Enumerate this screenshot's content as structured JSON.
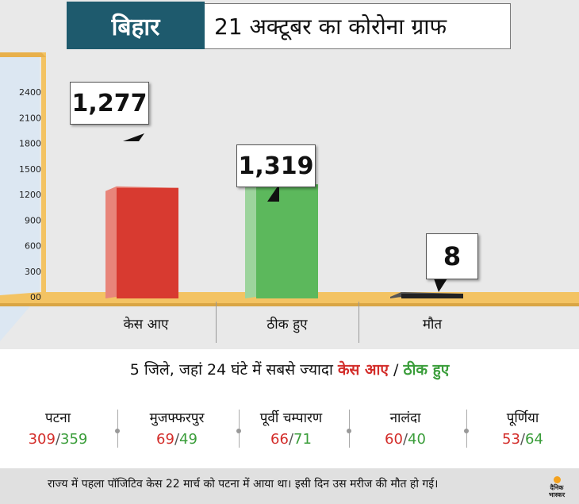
{
  "header": {
    "state": "बिहार",
    "title": "21 अक्टूबर का कोरोना ग्राफ"
  },
  "chart_data": {
    "type": "bar",
    "categories": [
      "केस आए",
      "ठीक हुए",
      "मौत"
    ],
    "values": [
      1277,
      1319,
      8
    ],
    "data_labels": [
      "1,277",
      "1,319",
      "8"
    ],
    "y_ticks": [
      "00",
      "300",
      "600",
      "900",
      "1200",
      "1500",
      "1800",
      "2100",
      "2400"
    ],
    "ylim": [
      0,
      2400
    ],
    "colors": {
      "cases": "#d83a30",
      "recovered": "#5cb85c",
      "deaths": "#222222",
      "floor": "#f3c363"
    }
  },
  "subtitle": {
    "prefix": "5 जिले, जहां 24 घंटे में सबसे ज्यादा",
    "cases": "केस आए",
    "slash": "/",
    "recovered": "ठीक हुए"
  },
  "districts": [
    {
      "name": "पटना",
      "cases": "309",
      "recovered": "359"
    },
    {
      "name": "मुजफ्फरपुर",
      "cases": "69",
      "recovered": "49"
    },
    {
      "name": "पूर्वी चम्पारण",
      "cases": "66",
      "recovered": "71"
    },
    {
      "name": "नालंदा",
      "cases": "60",
      "recovered": "40"
    },
    {
      "name": "पूर्णिया",
      "cases": "53",
      "recovered": "64"
    }
  ],
  "footer": {
    "note": "राज्य में पहला पॉजिटिव केस 22 मार्च को पटना में आया था। इसी दिन उस मरीज की मौत हो गई।"
  },
  "logo": {
    "line1": "दैनिक",
    "line2": "भास्कर"
  }
}
